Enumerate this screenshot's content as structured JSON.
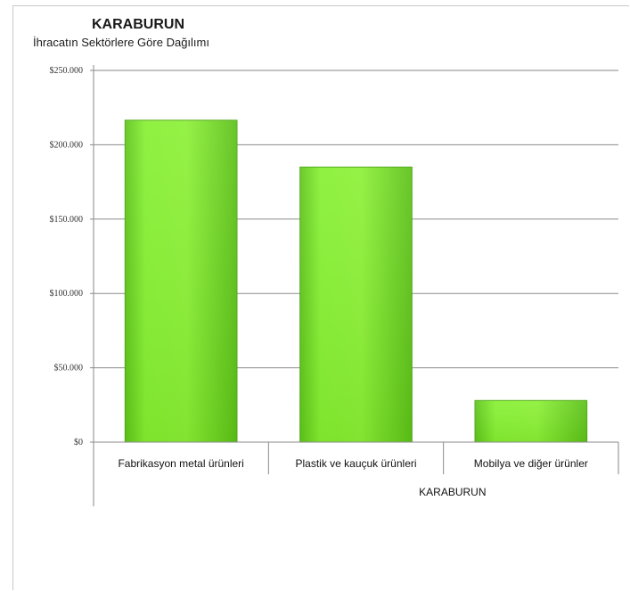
{
  "chart_data": {
    "type": "bar",
    "title": "KARABURUN",
    "subtitle": "İhracatın Sektörlere Göre Dağılımı",
    "categories": [
      "Fabrikasyon metal ürünleri",
      "Plastik ve kauçuk ürünleri",
      "Mobilya ve diğer ürünler"
    ],
    "series": [
      {
        "values": [
          216500,
          185000,
          28000
        ]
      }
    ],
    "xlabel": "KARABURUN",
    "ylabel": "",
    "ylim": [
      0,
      250000
    ],
    "yticks": [
      0,
      50000,
      100000,
      150000,
      200000,
      250000
    ],
    "ytick_labels": [
      "$0",
      "$50.000",
      "$100.000",
      "$150.000",
      "$200.000",
      "$250.000"
    ],
    "grid": true,
    "legend": "none",
    "bar_color": "#7ee82a"
  }
}
